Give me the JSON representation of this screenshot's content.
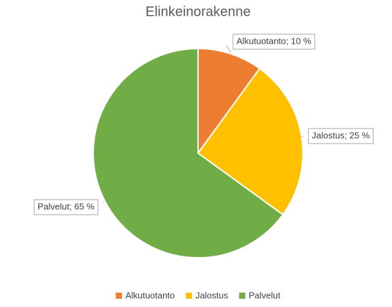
{
  "chart_data": {
    "type": "pie",
    "title": "Elinkeinorakenne",
    "categories": [
      "Alkutuotanto",
      "Jalostus",
      "Palvelut"
    ],
    "values": [
      10,
      25,
      65
    ],
    "value_labels": [
      "Alkutuotanto; 10 %",
      "Jalostus; 25 %",
      "Palvelut; 65 %"
    ],
    "colors": [
      "#ed7d31",
      "#ffc000",
      "#70ad47"
    ],
    "legend": "bottom"
  }
}
